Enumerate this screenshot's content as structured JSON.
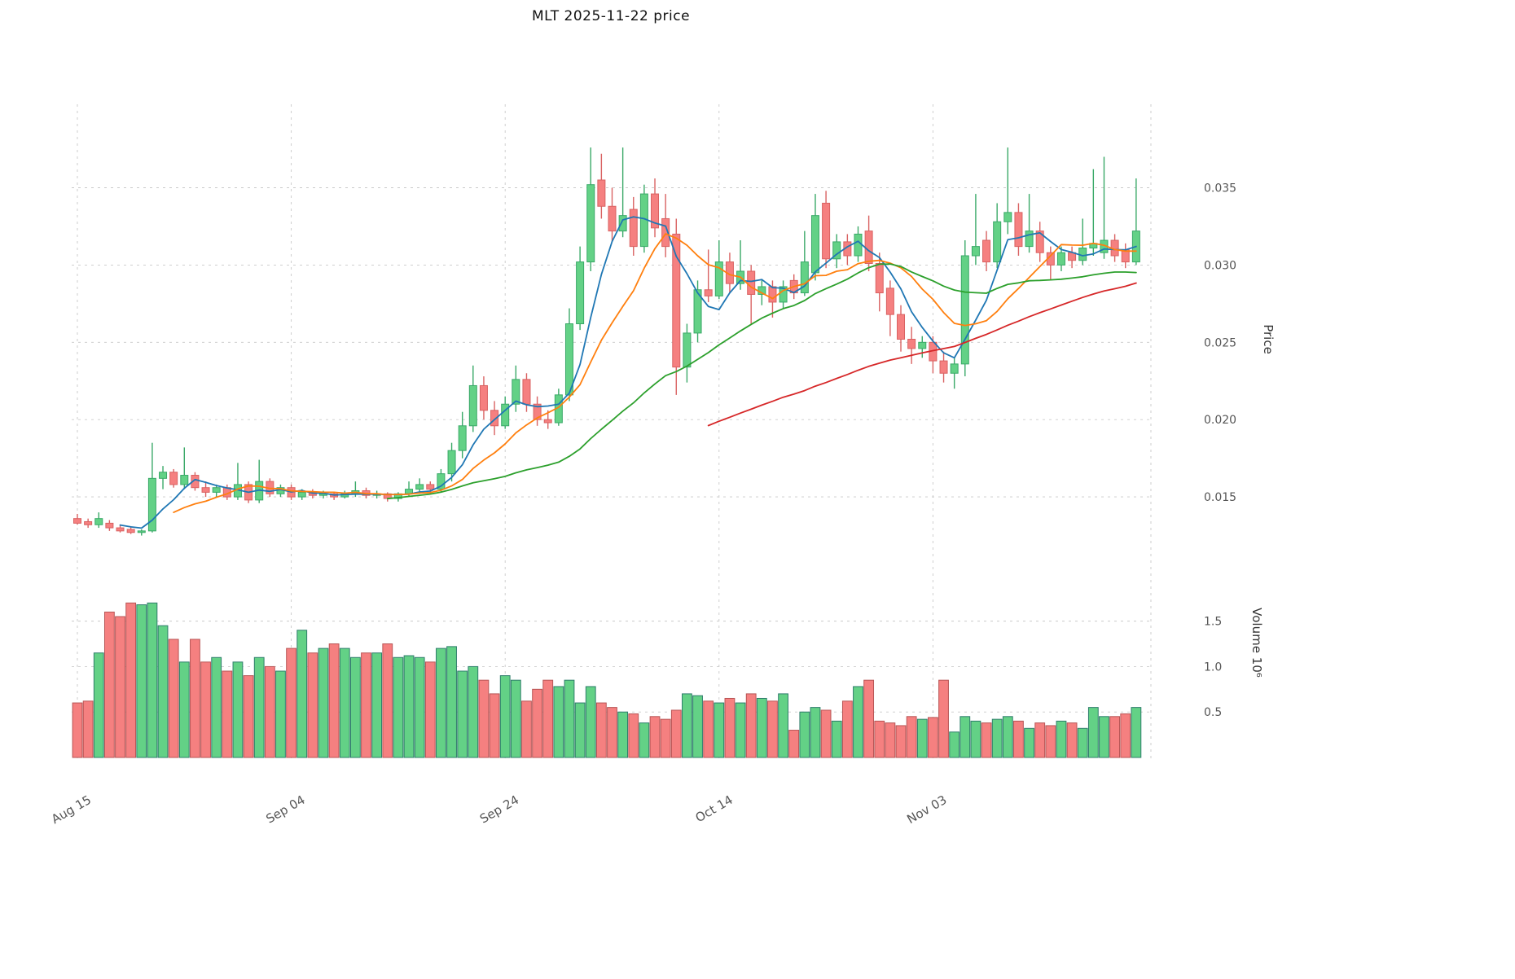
{
  "chart_data": {
    "type": "candlestick",
    "title": "MLT  2025-11-22  price",
    "x_axis": {
      "tick_labels": [
        "Aug 15",
        "Sep 04",
        "Sep 24",
        "Oct 14",
        "Nov 03"
      ],
      "tick_indices": [
        0,
        20,
        40,
        60,
        80
      ]
    },
    "price_axis": {
      "label": "Price",
      "ticks": [
        0.015,
        0.02,
        0.025,
        0.03,
        0.035
      ],
      "ylim": [
        0.01,
        0.0404
      ]
    },
    "volume_axis": {
      "label": "Volume  10⁶",
      "ticks": [
        0.5,
        1.0,
        1.5
      ],
      "ylim": [
        0,
        1.9
      ]
    },
    "moving_averages": [
      {
        "name": "ma-short",
        "window": 5,
        "color": "#1f77b4"
      },
      {
        "name": "ma-mid",
        "window": 10,
        "color": "#ff7f0e"
      },
      {
        "name": "ma-long",
        "window": 30,
        "color": "#2ca02c"
      },
      {
        "name": "ma-xlong",
        "window": 60,
        "color": "#d62728"
      }
    ],
    "colors": {
      "up": "#63d186",
      "down": "#f58080",
      "up_edge": "#3aa968",
      "down_edge": "#d96262",
      "vol_up_edge": "#2e7d6b",
      "vol_down_edge": "#b85555",
      "grid": "#c9c9c9",
      "text": "#555555"
    },
    "candles": [
      [
        0.0136,
        0.0139,
        0.0132,
        0.0133,
        0.6
      ],
      [
        0.0134,
        0.0136,
        0.013,
        0.0132,
        0.62
      ],
      [
        0.0132,
        0.014,
        0.013,
        0.0136,
        1.15
      ],
      [
        0.0133,
        0.0135,
        0.0128,
        0.013,
        1.6
      ],
      [
        0.013,
        0.0132,
        0.0127,
        0.0128,
        1.55
      ],
      [
        0.0129,
        0.0131,
        0.0126,
        0.0127,
        1.7
      ],
      [
        0.0127,
        0.0129,
        0.0125,
        0.0128,
        1.68
      ],
      [
        0.0128,
        0.0185,
        0.0127,
        0.0162,
        1.7
      ],
      [
        0.0162,
        0.017,
        0.0155,
        0.0166,
        1.45
      ],
      [
        0.0166,
        0.0168,
        0.0156,
        0.0158,
        1.3
      ],
      [
        0.0158,
        0.0182,
        0.0155,
        0.0164,
        1.05
      ],
      [
        0.0164,
        0.0166,
        0.0154,
        0.0156,
        1.3
      ],
      [
        0.0156,
        0.016,
        0.015,
        0.0153,
        1.05
      ],
      [
        0.0153,
        0.0158,
        0.015,
        0.0156,
        1.1
      ],
      [
        0.0156,
        0.0158,
        0.0148,
        0.015,
        0.95
      ],
      [
        0.015,
        0.0172,
        0.0148,
        0.0158,
        1.05
      ],
      [
        0.0158,
        0.016,
        0.0146,
        0.0148,
        0.9
      ],
      [
        0.0148,
        0.0174,
        0.0146,
        0.016,
        1.1
      ],
      [
        0.016,
        0.0162,
        0.015,
        0.0152,
        1.0
      ],
      [
        0.0152,
        0.0158,
        0.015,
        0.0156,
        0.95
      ],
      [
        0.0156,
        0.0158,
        0.0148,
        0.015,
        1.2
      ],
      [
        0.015,
        0.0155,
        0.0148,
        0.0153,
        1.4
      ],
      [
        0.0153,
        0.0155,
        0.0149,
        0.0151,
        1.15
      ],
      [
        0.0151,
        0.0154,
        0.0149,
        0.0152,
        1.2
      ],
      [
        0.0152,
        0.0153,
        0.0148,
        0.015,
        1.25
      ],
      [
        0.015,
        0.0154,
        0.0149,
        0.0152,
        1.2
      ],
      [
        0.0152,
        0.016,
        0.015,
        0.0154,
        1.1
      ],
      [
        0.0154,
        0.0156,
        0.0149,
        0.0151,
        1.15
      ],
      [
        0.0151,
        0.0154,
        0.0149,
        0.0152,
        1.15
      ],
      [
        0.0152,
        0.0153,
        0.0147,
        0.0149,
        1.25
      ],
      [
        0.0149,
        0.0153,
        0.0147,
        0.0152,
        1.1
      ],
      [
        0.0152,
        0.016,
        0.015,
        0.0155,
        1.12
      ],
      [
        0.0155,
        0.0162,
        0.0152,
        0.0158,
        1.1
      ],
      [
        0.0158,
        0.016,
        0.0152,
        0.0155,
        1.05
      ],
      [
        0.0155,
        0.0168,
        0.0153,
        0.0165,
        1.2
      ],
      [
        0.0165,
        0.0185,
        0.016,
        0.018,
        1.22
      ],
      [
        0.018,
        0.0205,
        0.0175,
        0.0196,
        0.95
      ],
      [
        0.0196,
        0.0235,
        0.0192,
        0.0222,
        1.0
      ],
      [
        0.0222,
        0.0228,
        0.02,
        0.0206,
        0.85
      ],
      [
        0.0206,
        0.0212,
        0.019,
        0.0196,
        0.7
      ],
      [
        0.0196,
        0.0215,
        0.0194,
        0.021,
        0.9
      ],
      [
        0.021,
        0.0235,
        0.0205,
        0.0226,
        0.85
      ],
      [
        0.0226,
        0.023,
        0.0205,
        0.021,
        0.62
      ],
      [
        0.021,
        0.0215,
        0.0196,
        0.02,
        0.75
      ],
      [
        0.02,
        0.0206,
        0.0194,
        0.0198,
        0.85
      ],
      [
        0.0198,
        0.022,
        0.0196,
        0.0216,
        0.78
      ],
      [
        0.0216,
        0.0272,
        0.0212,
        0.0262,
        0.85
      ],
      [
        0.0262,
        0.0312,
        0.0258,
        0.0302,
        0.6
      ],
      [
        0.0302,
        0.0376,
        0.0296,
        0.0352,
        0.78
      ],
      [
        0.0355,
        0.0372,
        0.033,
        0.0338,
        0.6
      ],
      [
        0.0338,
        0.035,
        0.0315,
        0.0322,
        0.55
      ],
      [
        0.0322,
        0.0376,
        0.0318,
        0.0332,
        0.5
      ],
      [
        0.0336,
        0.0344,
        0.0306,
        0.0312,
        0.48
      ],
      [
        0.0312,
        0.0352,
        0.0308,
        0.0346,
        0.38
      ],
      [
        0.0346,
        0.0356,
        0.0318,
        0.0324,
        0.45
      ],
      [
        0.033,
        0.0346,
        0.0305,
        0.0312,
        0.42
      ],
      [
        0.032,
        0.033,
        0.0216,
        0.0234,
        0.52
      ],
      [
        0.0234,
        0.0262,
        0.0224,
        0.0256,
        0.7
      ],
      [
        0.0256,
        0.029,
        0.025,
        0.0284,
        0.68
      ],
      [
        0.0284,
        0.031,
        0.0276,
        0.028,
        0.62
      ],
      [
        0.028,
        0.0316,
        0.0278,
        0.0302,
        0.6
      ],
      [
        0.0302,
        0.0308,
        0.0282,
        0.0288,
        0.65
      ],
      [
        0.0288,
        0.0316,
        0.0284,
        0.0296,
        0.6
      ],
      [
        0.0296,
        0.03,
        0.0262,
        0.0281,
        0.7
      ],
      [
        0.0281,
        0.029,
        0.0274,
        0.0286,
        0.65
      ],
      [
        0.0286,
        0.029,
        0.0266,
        0.0276,
        0.62
      ],
      [
        0.0276,
        0.029,
        0.0272,
        0.0286,
        0.7
      ],
      [
        0.029,
        0.0294,
        0.0278,
        0.0282,
        0.3
      ],
      [
        0.0282,
        0.0322,
        0.028,
        0.0302,
        0.5
      ],
      [
        0.0295,
        0.0346,
        0.029,
        0.0332,
        0.55
      ],
      [
        0.034,
        0.0348,
        0.0298,
        0.0304,
        0.52
      ],
      [
        0.0304,
        0.032,
        0.0298,
        0.0315,
        0.4
      ],
      [
        0.0315,
        0.032,
        0.03,
        0.0306,
        0.62
      ],
      [
        0.0306,
        0.0325,
        0.0302,
        0.032,
        0.78
      ],
      [
        0.0322,
        0.0332,
        0.0296,
        0.0301,
        0.85
      ],
      [
        0.0301,
        0.0308,
        0.027,
        0.0282,
        0.4
      ],
      [
        0.0285,
        0.029,
        0.0254,
        0.0268,
        0.38
      ],
      [
        0.0268,
        0.0274,
        0.0244,
        0.0252,
        0.35
      ],
      [
        0.0252,
        0.026,
        0.0236,
        0.0246,
        0.45
      ],
      [
        0.0246,
        0.0254,
        0.024,
        0.025,
        0.42
      ],
      [
        0.025,
        0.0254,
        0.023,
        0.0238,
        0.44
      ],
      [
        0.0238,
        0.0244,
        0.0224,
        0.023,
        0.85
      ],
      [
        0.023,
        0.024,
        0.022,
        0.0236,
        0.28
      ],
      [
        0.0236,
        0.0316,
        0.0228,
        0.0306,
        0.45
      ],
      [
        0.0306,
        0.0346,
        0.03,
        0.0312,
        0.4
      ],
      [
        0.0316,
        0.0322,
        0.0296,
        0.0302,
        0.38
      ],
      [
        0.0302,
        0.034,
        0.0298,
        0.0328,
        0.42
      ],
      [
        0.0328,
        0.0376,
        0.032,
        0.0334,
        0.45
      ],
      [
        0.0334,
        0.034,
        0.0306,
        0.0312,
        0.4
      ],
      [
        0.0312,
        0.0346,
        0.0308,
        0.0322,
        0.32
      ],
      [
        0.0322,
        0.0328,
        0.0302,
        0.0308,
        0.38
      ],
      [
        0.0308,
        0.0312,
        0.029,
        0.03,
        0.35
      ],
      [
        0.03,
        0.0312,
        0.0296,
        0.0308,
        0.4
      ],
      [
        0.0308,
        0.0312,
        0.0298,
        0.0303,
        0.38
      ],
      [
        0.0303,
        0.033,
        0.03,
        0.0311,
        0.32
      ],
      [
        0.0311,
        0.0362,
        0.0306,
        0.0314,
        0.55
      ],
      [
        0.0308,
        0.037,
        0.0304,
        0.0316,
        0.45
      ],
      [
        0.0316,
        0.032,
        0.0302,
        0.0306,
        0.45
      ],
      [
        0.031,
        0.0314,
        0.0298,
        0.0302,
        0.48
      ],
      [
        0.0302,
        0.0356,
        0.03,
        0.0322,
        0.55
      ]
    ]
  }
}
